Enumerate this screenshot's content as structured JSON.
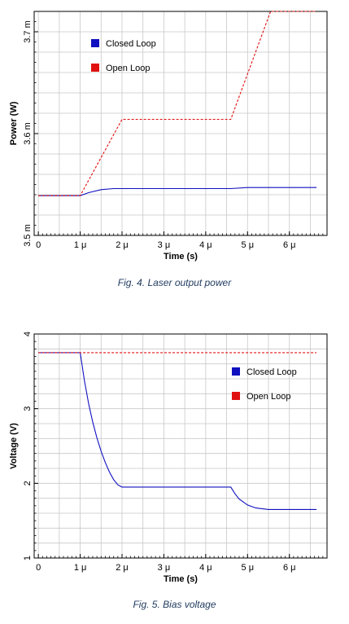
{
  "chart_data": [
    {
      "type": "line",
      "caption": "Fig. 4. Laser output power",
      "xlabel": "Time (s)",
      "ylabel": "Power (W)",
      "xlim": [
        -0.1,
        6.9
      ],
      "ylim": [
        3.5,
        3.72
      ],
      "x_ticks": [
        0,
        1,
        2,
        3,
        4,
        5,
        6
      ],
      "x_tick_labels": [
        "0",
        "1 μ",
        "2 μ",
        "3 μ",
        "4 μ",
        "5 μ",
        "6 μ"
      ],
      "y_ticks": [
        3.5,
        3.6,
        3.7
      ],
      "y_tick_labels": [
        "3.5 m",
        "3.6 m",
        "3.7 m"
      ],
      "grid": true,
      "legend_position": "top-left",
      "series": [
        {
          "name": "Closed Loop",
          "color": "#1010c0",
          "style": "solid",
          "x": [
            0,
            1.0,
            1.2,
            1.5,
            1.8,
            2.0,
            3.0,
            4.0,
            4.6,
            5.0,
            6.0,
            6.65
          ],
          "y": [
            3.539,
            3.539,
            3.542,
            3.545,
            3.546,
            3.546,
            3.546,
            3.546,
            3.546,
            3.547,
            3.547,
            3.547
          ]
        },
        {
          "name": "Open Loop",
          "color": "#e01010",
          "style": "dashed",
          "x": [
            0,
            1.0,
            2.0,
            4.6,
            5.55,
            6.65
          ],
          "y": [
            3.539,
            3.539,
            3.614,
            3.614,
            3.72,
            3.72
          ]
        }
      ]
    },
    {
      "type": "line",
      "caption": "Fig. 5. Bias voltage",
      "xlabel": "Time (s)",
      "ylabel": "Voltage (V)",
      "xlim": [
        -0.1,
        6.9
      ],
      "ylim": [
        1,
        4
      ],
      "x_ticks": [
        0,
        1,
        2,
        3,
        4,
        5,
        6
      ],
      "x_tick_labels": [
        "0",
        "1 μ",
        "2 μ",
        "3 μ",
        "4 μ",
        "5 μ",
        "6 μ"
      ],
      "y_ticks": [
        1,
        2,
        3,
        4
      ],
      "y_tick_labels": [
        "1",
        "2",
        "3",
        "4"
      ],
      "grid": true,
      "legend_position": "right",
      "series": [
        {
          "name": "Closed Loop",
          "color": "#1010c0",
          "style": "solid",
          "x": [
            0,
            1.0,
            1.1,
            1.2,
            1.3,
            1.4,
            1.5,
            1.6,
            1.7,
            1.8,
            1.9,
            2.0,
            3.0,
            4.0,
            4.6,
            4.7,
            4.8,
            5.0,
            5.2,
            5.5,
            6.0,
            6.65
          ],
          "y": [
            3.75,
            3.75,
            3.38,
            3.07,
            2.82,
            2.61,
            2.43,
            2.28,
            2.15,
            2.05,
            1.98,
            1.95,
            1.95,
            1.95,
            1.95,
            1.86,
            1.79,
            1.71,
            1.67,
            1.65,
            1.65,
            1.65
          ]
        },
        {
          "name": "Open Loop",
          "color": "#e01010",
          "style": "dashed",
          "x": [
            0,
            6.65
          ],
          "y": [
            3.75,
            3.75
          ]
        }
      ]
    }
  ]
}
